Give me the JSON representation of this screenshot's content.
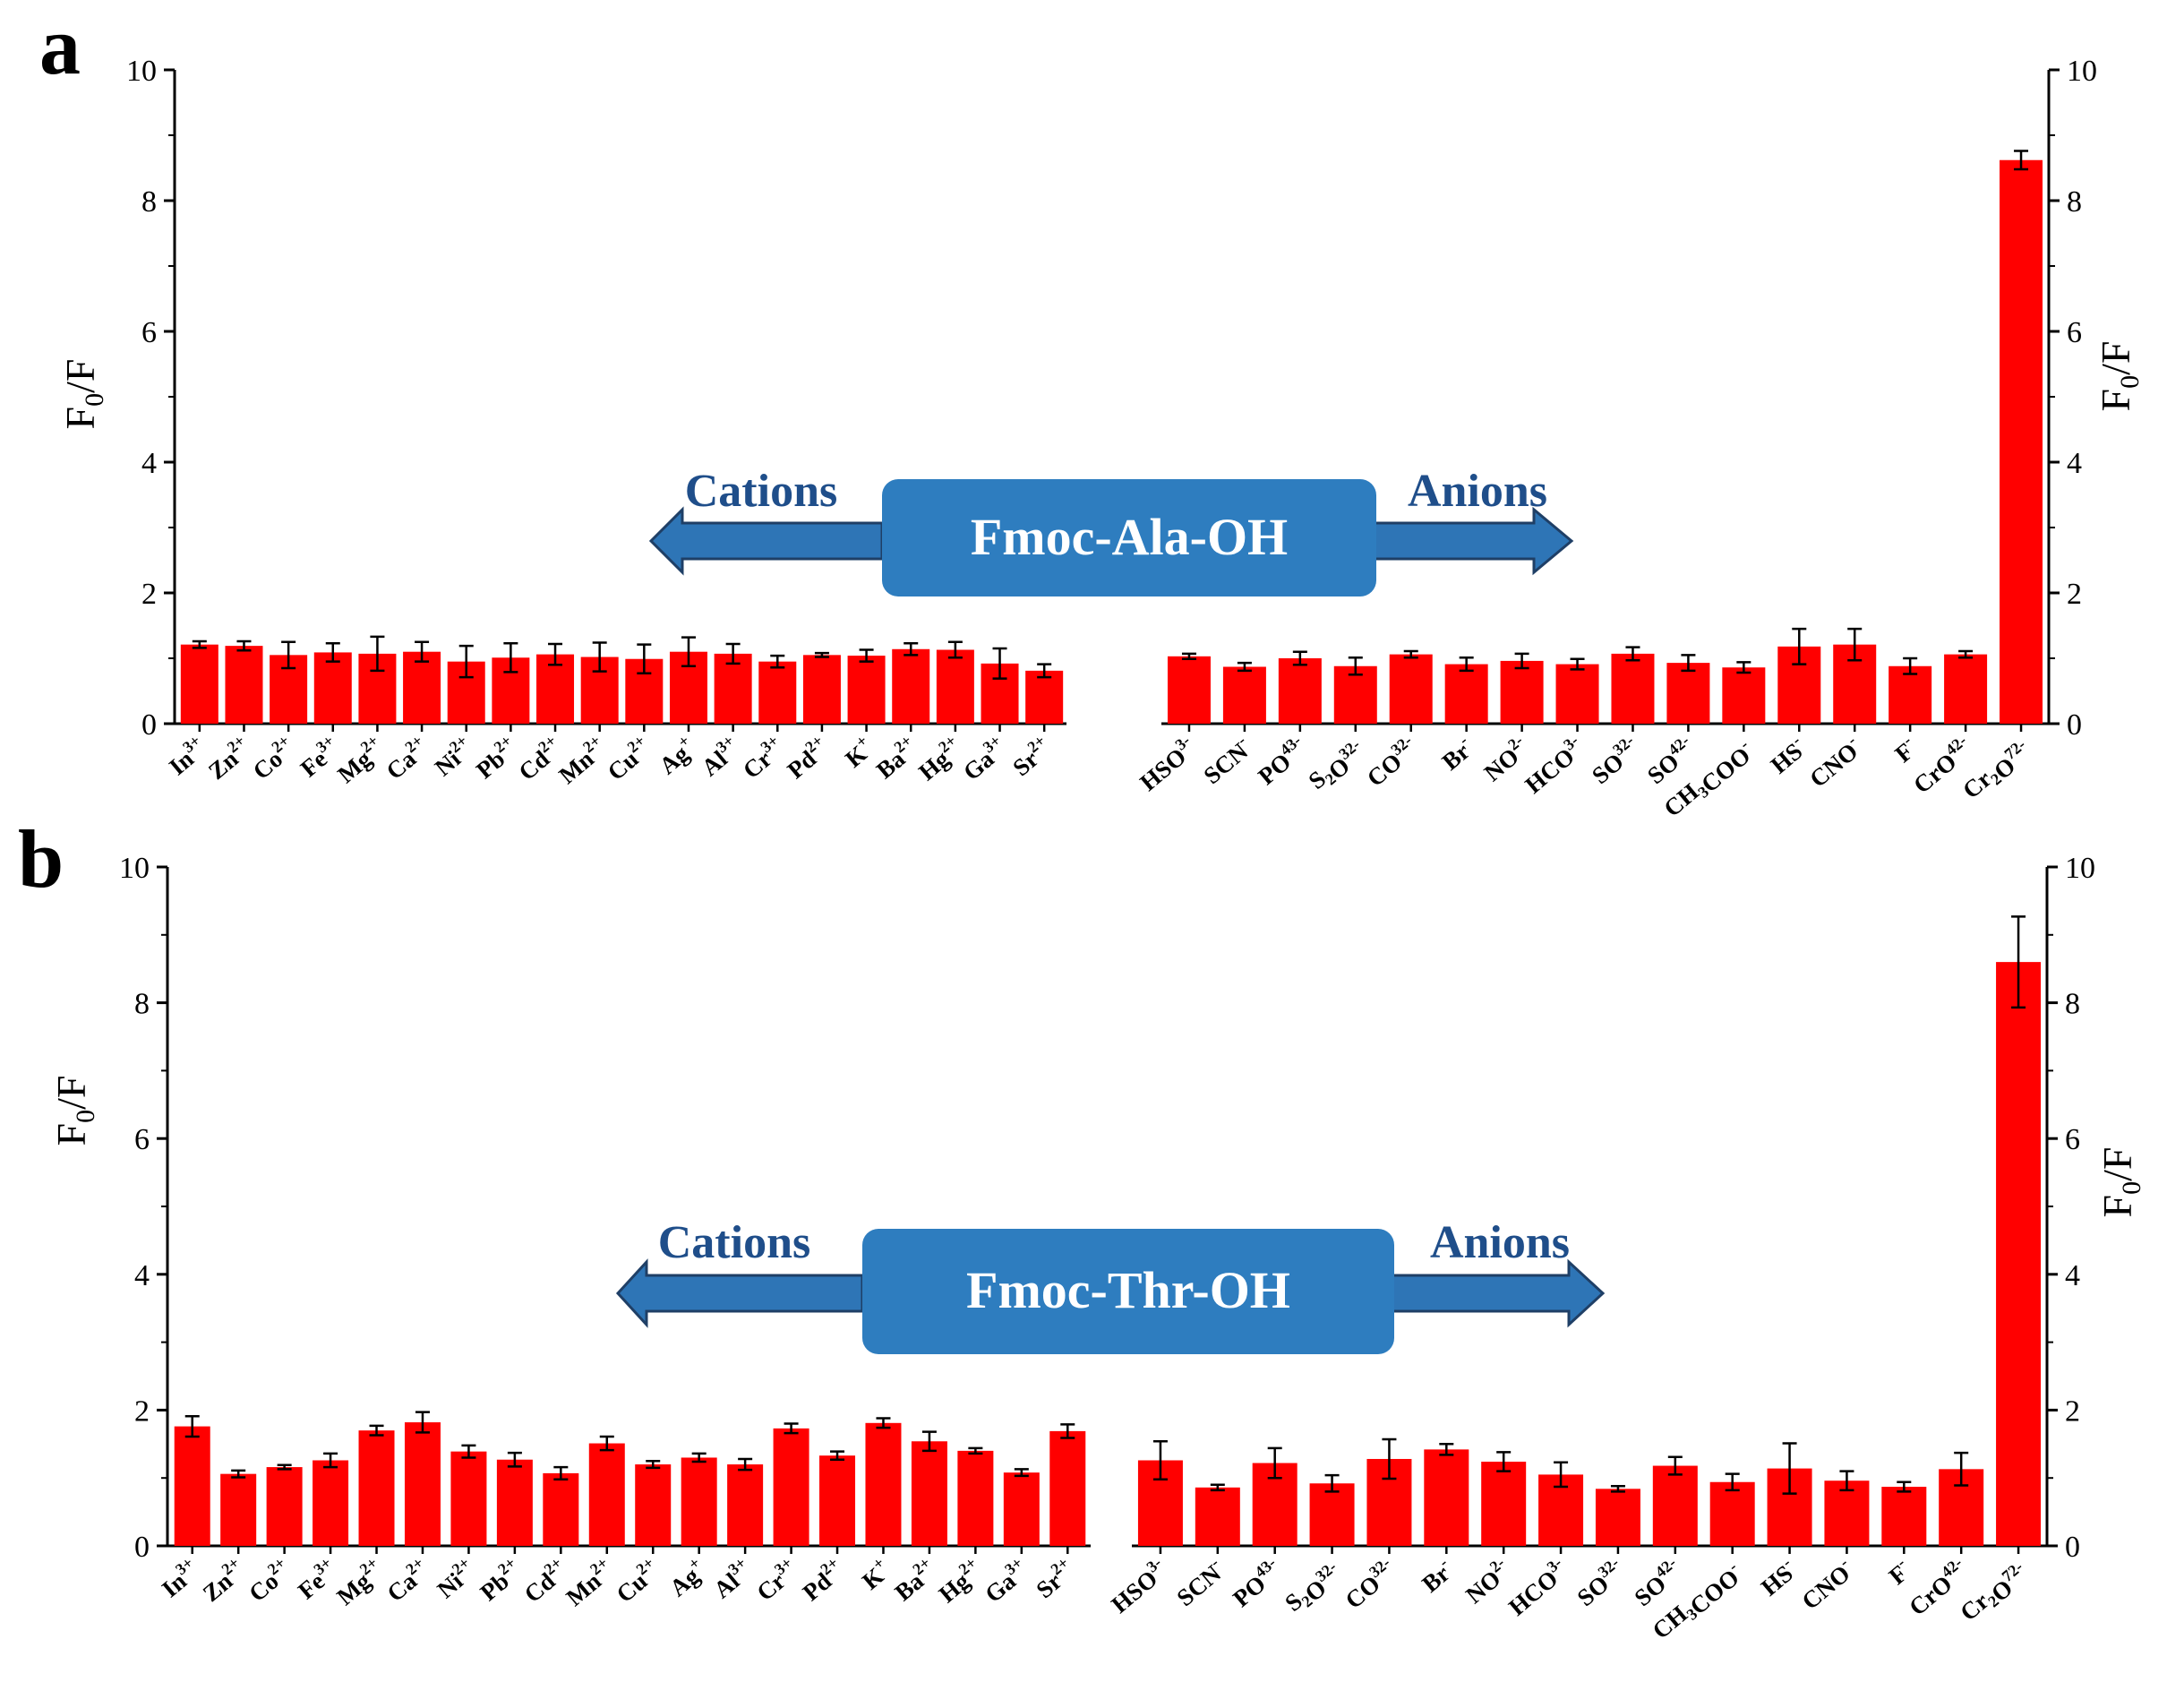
{
  "chart_data": [
    {
      "panel": "a",
      "type": "bar",
      "ylabel": "F0/F",
      "ylim": [
        0,
        10
      ],
      "yticks": [
        0,
        2,
        4,
        6,
        8,
        10
      ],
      "bar_color": "#ff0000",
      "center_label": "Fmoc-Ala-OH",
      "left_arrow_label": "Cations",
      "right_arrow_label": "Anions",
      "groups": [
        {
          "name": "Cations",
          "categories": [
            "In3+",
            "Zn2+",
            "Co2+",
            "Fe3+",
            "Mg2+",
            "Ca2+",
            "Ni2+",
            "Pb2+",
            "Cd2+",
            "Mn2+",
            "Cu2+",
            "Ag+",
            "Al3+",
            "Cr3+",
            "Pd2+",
            "K+",
            "Ba2+",
            "Hg2+",
            "Ga3+",
            "Sr2+"
          ],
          "values": [
            1.21,
            1.19,
            1.05,
            1.09,
            1.07,
            1.1,
            0.95,
            1.01,
            1.06,
            1.02,
            0.99,
            1.1,
            1.07,
            0.95,
            1.05,
            1.04,
            1.14,
            1.13,
            0.92,
            0.81
          ],
          "errors": [
            0.05,
            0.07,
            0.2,
            0.14,
            0.26,
            0.15,
            0.24,
            0.22,
            0.16,
            0.22,
            0.22,
            0.22,
            0.15,
            0.09,
            0.03,
            0.09,
            0.09,
            0.12,
            0.23,
            0.1
          ]
        },
        {
          "name": "Anions",
          "categories": [
            "HSO3-",
            "SCN-",
            "PO43-",
            "S2O32-",
            "CO32-",
            "Br-",
            "NO2-",
            "HCO3-",
            "SO32-",
            "SO42-",
            "CH3COO-",
            "HS-",
            "CNO-",
            "F-",
            "CrO42-",
            "Cr2O72-"
          ],
          "values": [
            1.03,
            0.87,
            1.0,
            0.88,
            1.06,
            0.91,
            0.96,
            0.91,
            1.07,
            0.93,
            0.86,
            1.18,
            1.21,
            0.88,
            1.06,
            8.62
          ],
          "errors": [
            0.04,
            0.06,
            0.1,
            0.13,
            0.05,
            0.1,
            0.11,
            0.08,
            0.1,
            0.12,
            0.08,
            0.27,
            0.24,
            0.12,
            0.05,
            0.14
          ]
        }
      ]
    },
    {
      "panel": "b",
      "type": "bar",
      "ylabel": "F0/F",
      "ylim": [
        0,
        10
      ],
      "yticks": [
        0,
        2,
        4,
        6,
        8,
        10
      ],
      "bar_color": "#ff0000",
      "center_label": "Fmoc-Thr-OH",
      "left_arrow_label": "Cations",
      "right_arrow_label": "Anions",
      "groups": [
        {
          "name": "Cations",
          "categories": [
            "In3+",
            "Zn2+",
            "Co2+",
            "Fe3+",
            "Mg2+",
            "Ca2+",
            "Ni2+",
            "Pb2+",
            "Cd2+",
            "Mn2+",
            "Cu2+",
            "Ag+",
            "Al3+",
            "Cr3+",
            "Pd2+",
            "K+",
            "Ba2+",
            "Hg2+",
            "Ga3+",
            "Sr2+"
          ],
          "values": [
            1.76,
            1.06,
            1.16,
            1.26,
            1.7,
            1.82,
            1.39,
            1.27,
            1.07,
            1.51,
            1.2,
            1.3,
            1.2,
            1.73,
            1.33,
            1.81,
            1.54,
            1.4,
            1.08,
            1.69
          ],
          "errors": [
            0.15,
            0.05,
            0.03,
            0.1,
            0.07,
            0.15,
            0.09,
            0.1,
            0.09,
            0.1,
            0.05,
            0.06,
            0.08,
            0.07,
            0.06,
            0.07,
            0.14,
            0.04,
            0.05,
            0.1
          ]
        },
        {
          "name": "Anions",
          "categories": [
            "HSO3-",
            "SCN-",
            "PO43-",
            "S2O32-",
            "CO32-",
            "Br-",
            "NO2-",
            "HCO3-",
            "SO32-",
            "SO42-",
            "CH3COO-",
            "HS-",
            "CNO-",
            "F-",
            "CrO42-",
            "Cr2O72-"
          ],
          "values": [
            1.26,
            0.86,
            1.22,
            0.92,
            1.28,
            1.42,
            1.24,
            1.05,
            0.84,
            1.18,
            0.94,
            1.14,
            0.96,
            0.87,
            1.13,
            8.6
          ],
          "errors": [
            0.28,
            0.04,
            0.22,
            0.12,
            0.29,
            0.08,
            0.14,
            0.18,
            0.04,
            0.13,
            0.12,
            0.37,
            0.14,
            0.07,
            0.24,
            0.67
          ]
        }
      ]
    }
  ]
}
